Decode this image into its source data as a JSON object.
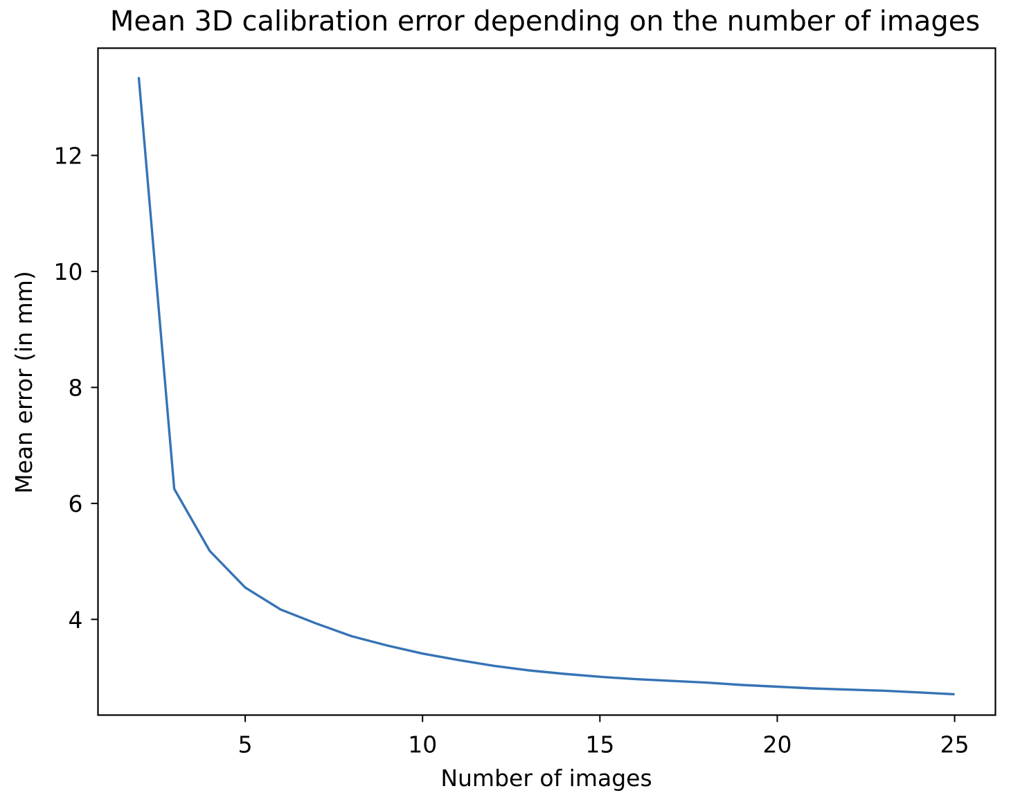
{
  "chart_data": {
    "type": "line",
    "title": "Mean 3D calibration error depending on the number of images",
    "xlabel": "Number of images",
    "ylabel": "Mean error (in mm)",
    "xlim": [
      0.85,
      26.15
    ],
    "ylim": [
      2.35,
      13.85
    ],
    "xticks": [
      5,
      10,
      15,
      20,
      25
    ],
    "xtick_labels": [
      "5",
      "10",
      "15",
      "20",
      "25"
    ],
    "yticks": [
      4,
      6,
      8,
      10,
      12
    ],
    "ytick_labels": [
      "4",
      "6",
      "8",
      "10",
      "12"
    ],
    "grid": false,
    "legend": "none",
    "series": [
      {
        "color": "#3673b5",
        "x": [
          2,
          3,
          4,
          5,
          6,
          7,
          8,
          9,
          10,
          11,
          12,
          13,
          14,
          15,
          16,
          17,
          18,
          19,
          20,
          21,
          22,
          23,
          24,
          25
        ],
        "y": [
          13.35,
          6.25,
          5.18,
          4.55,
          4.17,
          3.93,
          3.71,
          3.55,
          3.41,
          3.3,
          3.2,
          3.12,
          3.06,
          3.01,
          2.97,
          2.94,
          2.91,
          2.87,
          2.84,
          2.81,
          2.79,
          2.77,
          2.74,
          2.71
        ]
      }
    ]
  }
}
